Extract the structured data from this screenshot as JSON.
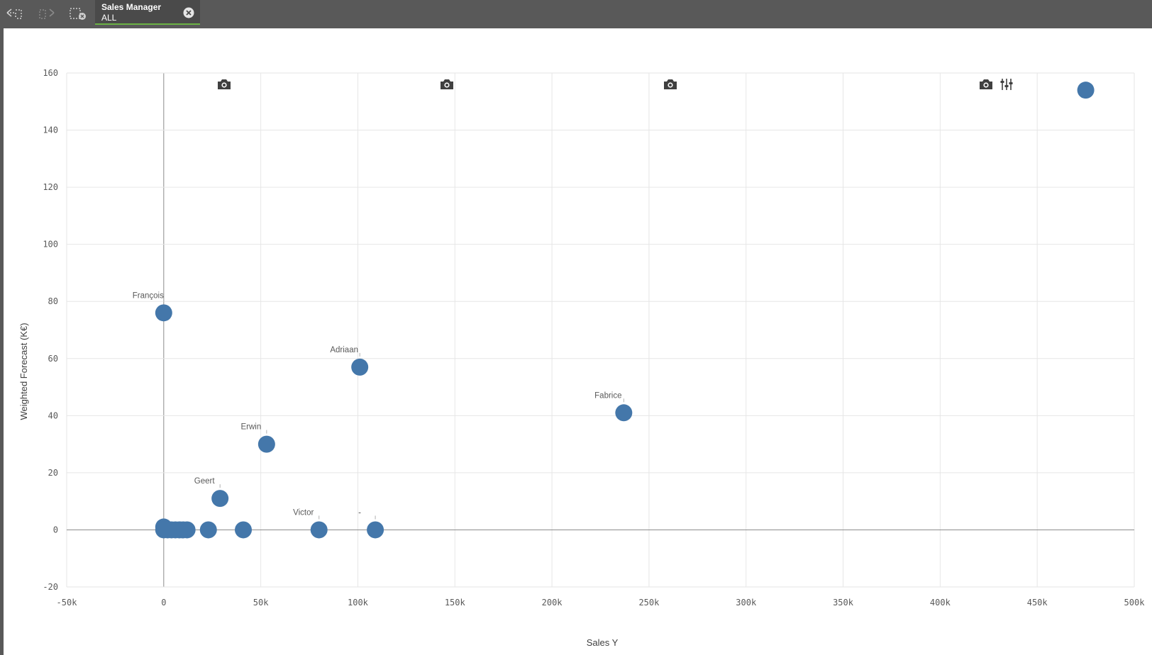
{
  "toolbar": {
    "back_icon": "selections-back-icon",
    "forward_icon": "selections-forward-icon",
    "clear_icon": "clear-all-selections-icon",
    "selection": {
      "field": "Sales Manager",
      "value": "ALL"
    }
  },
  "chart_toolbar": {
    "snapshot_icon": "camera-icon",
    "adjust_icon": "sliders-icon"
  },
  "colors": {
    "point": "#4477aa",
    "grid": "#e6e6e6",
    "zero_line": "#8c8c8c",
    "toolbar_bg": "#595959",
    "selection_underline": "#6bb345"
  },
  "chart_data": {
    "type": "scatter",
    "title": "",
    "xlabel": "Sales Y",
    "ylabel": "Weighted Forecast (K€)",
    "xlim": [
      -50000,
      500000
    ],
    "ylim": [
      -20,
      160
    ],
    "x_ticks": [
      -50000,
      0,
      50000,
      100000,
      150000,
      200000,
      250000,
      300000,
      350000,
      400000,
      450000,
      500000
    ],
    "x_tick_labels": [
      "-50k",
      "0",
      "50k",
      "100k",
      "150k",
      "200k",
      "250k",
      "300k",
      "350k",
      "400k",
      "450k",
      "500k"
    ],
    "y_ticks": [
      -20,
      0,
      20,
      40,
      60,
      80,
      100,
      120,
      140,
      160
    ],
    "y_tick_labels": [
      "-20",
      "0",
      "20",
      "40",
      "60",
      "80",
      "100",
      "120",
      "140",
      "160"
    ],
    "grid": true,
    "points": [
      {
        "label": "",
        "x": 475000,
        "y": 154
      },
      {
        "label": "François",
        "x": 0,
        "y": 76
      },
      {
        "label": "Adriaan",
        "x": 101000,
        "y": 57
      },
      {
        "label": "Fabrice",
        "x": 237000,
        "y": 41
      },
      {
        "label": "Erwin",
        "x": 53000,
        "y": 30
      },
      {
        "label": "Geert",
        "x": 29000,
        "y": 11
      },
      {
        "label": "Victor",
        "x": 80000,
        "y": 0
      },
      {
        "label": "-",
        "x": 109000,
        "y": 0
      },
      {
        "label": "",
        "x": 41000,
        "y": 0
      },
      {
        "label": "",
        "x": 23000,
        "y": 0
      },
      {
        "label": "",
        "x": 12000,
        "y": 0
      },
      {
        "label": "",
        "x": 10000,
        "y": 0
      },
      {
        "label": "",
        "x": 8000,
        "y": 0
      },
      {
        "label": "",
        "x": 6000,
        "y": 0
      },
      {
        "label": "",
        "x": 4000,
        "y": 0
      },
      {
        "label": "",
        "x": 2000,
        "y": 0
      },
      {
        "label": "",
        "x": 0,
        "y": 1
      },
      {
        "label": "",
        "x": 0,
        "y": 0
      }
    ]
  }
}
